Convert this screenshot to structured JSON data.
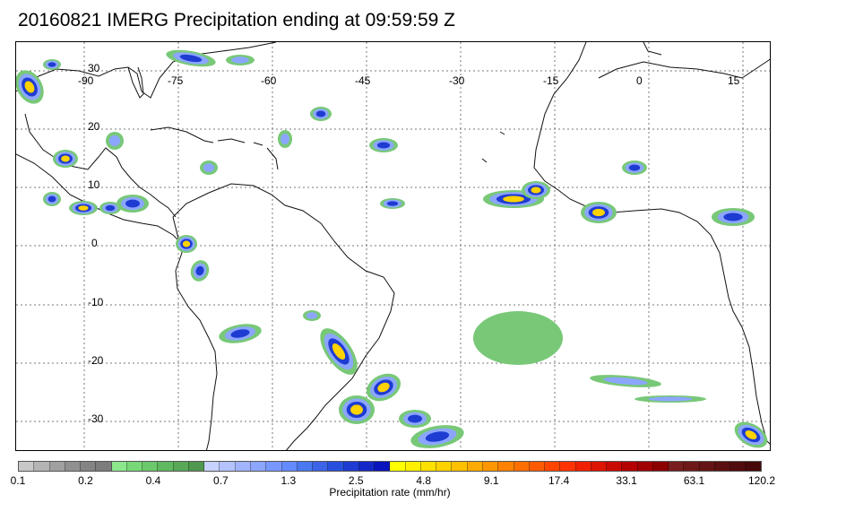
{
  "title": "20160821 IMERG Precipitation ending at 09:59:59 Z",
  "lon_labels": [
    "-90",
    "-75",
    "-60",
    "-45",
    "-30",
    "-15",
    "0",
    "15"
  ],
  "lat_labels": [
    "30",
    "20",
    "10",
    "0",
    "-10",
    "-20",
    "-30"
  ],
  "colorbar": {
    "title": "Precipitation rate (mm/hr)",
    "tick_labels": [
      "0.1",
      "0.2",
      "0.4",
      "0.7",
      "1.3",
      "2.5",
      "4.8",
      "9.1",
      "17.4",
      "33.1",
      "63.1",
      "120.2"
    ],
    "colors": [
      "#c8c8c8",
      "#b4b4b4",
      "#a0a0a0",
      "#909090",
      "#848484",
      "#7c7c7c",
      "#8ce68c",
      "#78d878",
      "#6cc86c",
      "#60b860",
      "#58a858",
      "#509850",
      "#c8d2ff",
      "#b4c3ff",
      "#a0b4ff",
      "#8ca6ff",
      "#7898ff",
      "#648aff",
      "#4a78f0",
      "#3c64e6",
      "#2850dc",
      "#1e3cd2",
      "#1428c8",
      "#0a14be",
      "#ffff00",
      "#fff000",
      "#ffe100",
      "#ffd200",
      "#ffc000",
      "#ffaa00",
      "#ff9600",
      "#ff8200",
      "#ff6e00",
      "#ff5a00",
      "#ff4600",
      "#ff3200",
      "#f02000",
      "#dc1400",
      "#c80a00",
      "#b40000",
      "#a00000",
      "#8c0000",
      "#781e1e",
      "#6e1919",
      "#641414",
      "#5a1010",
      "#500c0c",
      "#460808"
    ]
  },
  "rain_colors": {
    "light": "#78c878",
    "moderate": "#8ca6ff",
    "heavy": "#1e3cd2",
    "very_heavy": "#ffd200",
    "extreme": "#ff3200",
    "trace": "#a0a0a0"
  }
}
